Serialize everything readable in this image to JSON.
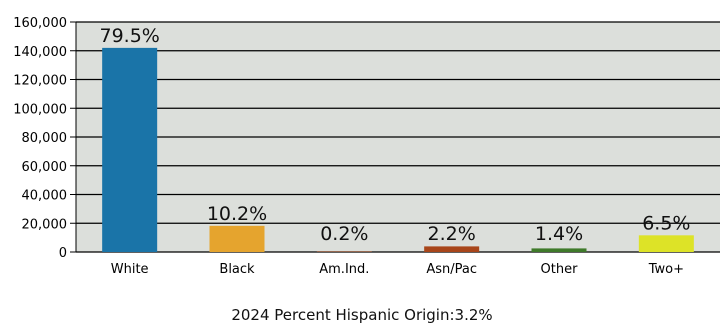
{
  "chart_data": {
    "type": "bar",
    "categories": [
      "White",
      "Black",
      "Am.Ind.",
      "Asn/Pac",
      "Other",
      "Two+"
    ],
    "values": [
      142000,
      18200,
      400,
      3900,
      2500,
      11600
    ],
    "data_labels": [
      "79.5%",
      "10.2%",
      "0.2%",
      "2.2%",
      "1.4%",
      "6.5%"
    ],
    "bar_colors": [
      "#1a74a8",
      "#e5a42e",
      "#8a3a12",
      "#a8461a",
      "#3f7a2a",
      "#dde327"
    ],
    "ylim": [
      0,
      160000
    ],
    "yticks": [
      0,
      20000,
      40000,
      60000,
      80000,
      100000,
      120000,
      140000,
      160000
    ],
    "ytick_labels": [
      "0",
      "20,000",
      "40,000",
      "60,000",
      "80,000",
      "100,000",
      "120,000",
      "140,000",
      "160,000"
    ],
    "grid": true,
    "plot_background": "#dcdfdb"
  },
  "footer": {
    "text": "2024 Percent Hispanic Origin:3.2%"
  }
}
